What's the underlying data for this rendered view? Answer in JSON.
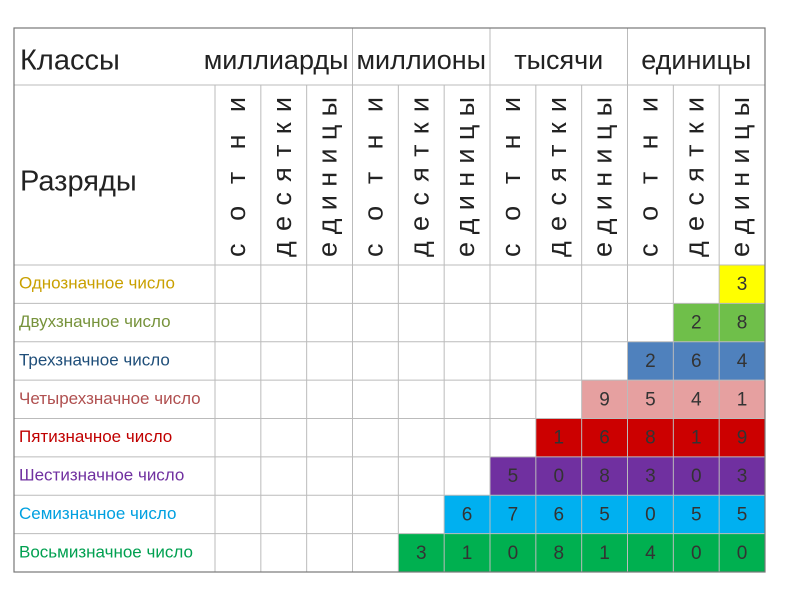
{
  "table": {
    "classes_label": "Классы",
    "classes": [
      "миллиарды",
      "миллионы",
      "тысячи",
      "единицы"
    ],
    "ranks_label": "Разряды",
    "ranks": [
      "сотни",
      "десятки",
      "единицы",
      "сотни",
      "десятки",
      "единицы",
      "сотни",
      "десятки",
      "единицы",
      "сотни",
      "десятки",
      "единицы"
    ],
    "rows": [
      {
        "label": "Однозначное число",
        "label_color": "#c9a000",
        "fill": "#ffff00",
        "digits": [
          3
        ]
      },
      {
        "label": "Двухзначное число",
        "label_color": "#77933c",
        "fill": "#6fbf4a",
        "digits": [
          2,
          8
        ]
      },
      {
        "label": "Трехзначное число",
        "label_color": "#1f4e79",
        "fill": "#4f81bd",
        "digits": [
          2,
          6,
          4
        ]
      },
      {
        "label": "Четырехзначное число",
        "label_color": "#b05050",
        "fill": "#e6a0a0",
        "digits": [
          9,
          5,
          4,
          1
        ]
      },
      {
        "label": "Пятизначное число",
        "label_color": "#c00000",
        "fill": "#cc0000",
        "digits": [
          1,
          6,
          8,
          1,
          9
        ]
      },
      {
        "label": "Шестизначное число",
        "label_color": "#7030a0",
        "fill": "#7030a0",
        "digits": [
          5,
          0,
          8,
          3,
          0,
          3
        ]
      },
      {
        "label": "Семизначное число",
        "label_color": "#00a0e0",
        "fill": "#00b0f0",
        "digits": [
          6,
          7,
          6,
          5,
          0,
          5,
          5
        ]
      },
      {
        "label": "Восьмизначное число",
        "label_color": "#00a050",
        "fill": "#00b050",
        "digits": [
          3,
          1,
          0,
          8,
          1,
          4,
          0,
          0
        ]
      }
    ]
  }
}
